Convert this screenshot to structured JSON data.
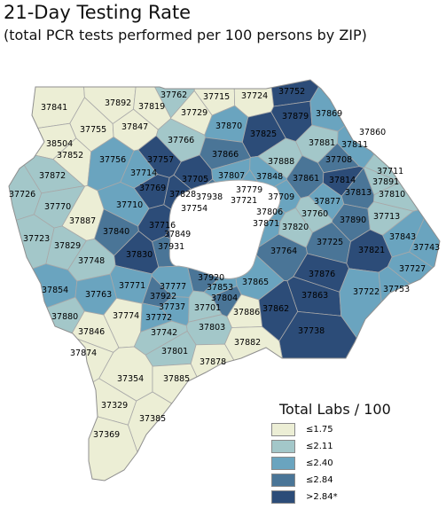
{
  "title": "21-Day Testing Rate",
  "subtitle": "(total PCR tests performed per 100 persons by ZIP)",
  "legend": {
    "title": "Total Labs / 100",
    "items": [
      {
        "label": "≤1.75",
        "color": "#eceed5"
      },
      {
        "label": "≤2.11",
        "color": "#a3c7c9"
      },
      {
        "label": "≤2.40",
        "color": "#6aa4bf"
      },
      {
        "label": "≤2.84",
        "color": "#4a7597"
      },
      {
        "label": ">2.84*",
        "color": "#2c4c78"
      }
    ]
  },
  "map_colors": {
    "border": "#a8a8a8",
    "lake": "#ffffff"
  },
  "zips": [
    {
      "zip": "37762",
      "cls": 1
    },
    {
      "zip": "37715",
      "cls": 0
    },
    {
      "zip": "37724",
      "cls": 0
    },
    {
      "zip": "37752",
      "cls": 4
    },
    {
      "zip": "37841",
      "cls": 0
    },
    {
      "zip": "37892",
      "cls": 0
    },
    {
      "zip": "37819",
      "cls": 0
    },
    {
      "zip": "37729",
      "cls": 0
    },
    {
      "zip": "37879",
      "cls": 4
    },
    {
      "zip": "37869",
      "cls": 2
    },
    {
      "zip": "37755",
      "cls": 0
    },
    {
      "zip": "37847",
      "cls": 0
    },
    {
      "zip": "37870",
      "cls": 2
    },
    {
      "zip": "37825",
      "cls": 4
    },
    {
      "zip": "37766",
      "cls": 1
    },
    {
      "zip": "37881",
      "cls": 1
    },
    {
      "zip": "37811",
      "cls": 2
    },
    {
      "zip": "38504",
      "cls": 0
    },
    {
      "zip": "37852",
      "cls": 0
    },
    {
      "zip": "37756",
      "cls": 2
    },
    {
      "zip": "37757",
      "cls": 4
    },
    {
      "zip": "37866",
      "cls": 3
    },
    {
      "zip": "37888",
      "cls": 1
    },
    {
      "zip": "37708",
      "cls": 3
    },
    {
      "zip": "37860",
      "cls": 1
    },
    {
      "zip": "37872",
      "cls": 1
    },
    {
      "zip": "37714",
      "cls": 2
    },
    {
      "zip": "37705",
      "cls": 4
    },
    {
      "zip": "37807",
      "cls": 2
    },
    {
      "zip": "37848",
      "cls": 2
    },
    {
      "zip": "37861",
      "cls": 3
    },
    {
      "zip": "37814",
      "cls": 4
    },
    {
      "zip": "37711",
      "cls": 1
    },
    {
      "zip": "37891",
      "cls": 1
    },
    {
      "zip": "37769",
      "cls": 4
    },
    {
      "zip": "37828",
      "cls": 4
    },
    {
      "zip": "37938",
      "cls": 3
    },
    {
      "zip": "37779",
      "cls": 2
    },
    {
      "zip": "37721",
      "cls": 2
    },
    {
      "zip": "37726",
      "cls": 1
    },
    {
      "zip": "37770",
      "cls": 1
    },
    {
      "zip": "37710",
      "cls": 2
    },
    {
      "zip": "37754",
      "cls": 3
    },
    {
      "zip": "37709",
      "cls": 2
    },
    {
      "zip": "37877",
      "cls": 2
    },
    {
      "zip": "37813",
      "cls": 3
    },
    {
      "zip": "37810",
      "cls": 1
    },
    {
      "zip": "37806",
      "cls": 2
    },
    {
      "zip": "37760",
      "cls": 1
    },
    {
      "zip": "37890",
      "cls": 3
    },
    {
      "zip": "37887",
      "cls": 0
    },
    {
      "zip": "37871",
      "cls": 2
    },
    {
      "zip": "37820",
      "cls": 1
    },
    {
      "zip": "37713",
      "cls": 1
    },
    {
      "zip": "37840",
      "cls": 3
    },
    {
      "zip": "37716",
      "cls": 4
    },
    {
      "zip": "37723",
      "cls": 1
    },
    {
      "zip": "37849",
      "cls": 4
    },
    {
      "zip": "37725",
      "cls": 3
    },
    {
      "zip": "37843",
      "cls": 2
    },
    {
      "zip": "37829",
      "cls": 1
    },
    {
      "zip": "37931",
      "cls": 3
    },
    {
      "zip": "37821",
      "cls": 4
    },
    {
      "zip": "37743",
      "cls": 2
    },
    {
      "zip": "37748",
      "cls": 1
    },
    {
      "zip": "37830",
      "cls": 4
    },
    {
      "zip": "37764",
      "cls": 3
    },
    {
      "zip": "37876",
      "cls": 4
    },
    {
      "zip": "37727",
      "cls": 2
    },
    {
      "zip": "37920",
      "cls": 3
    },
    {
      "zip": "37865",
      "cls": 2
    },
    {
      "zip": "37853",
      "cls": 2
    },
    {
      "zip": "37854",
      "cls": 2
    },
    {
      "zip": "37771",
      "cls": 2
    },
    {
      "zip": "37777",
      "cls": 2
    },
    {
      "zip": "37922",
      "cls": 3
    },
    {
      "zip": "37804",
      "cls": 3
    },
    {
      "zip": "37863",
      "cls": 4
    },
    {
      "zip": "37722",
      "cls": 2
    },
    {
      "zip": "37753",
      "cls": 2
    },
    {
      "zip": "37763",
      "cls": 2
    },
    {
      "zip": "37737",
      "cls": 2
    },
    {
      "zip": "37701",
      "cls": 1
    },
    {
      "zip": "37886",
      "cls": 0
    },
    {
      "zip": "37862",
      "cls": 4
    },
    {
      "zip": "37880",
      "cls": 1
    },
    {
      "zip": "37774",
      "cls": 0
    },
    {
      "zip": "37772",
      "cls": 2
    },
    {
      "zip": "37742",
      "cls": 1
    },
    {
      "zip": "37803",
      "cls": 1
    },
    {
      "zip": "37738",
      "cls": 4
    },
    {
      "zip": "37846",
      "cls": 0
    },
    {
      "zip": "37882",
      "cls": 0
    },
    {
      "zip": "37874",
      "cls": 0
    },
    {
      "zip": "37801",
      "cls": 1
    },
    {
      "zip": "37878",
      "cls": 0
    },
    {
      "zip": "37354",
      "cls": 0
    },
    {
      "zip": "37885",
      "cls": 0
    },
    {
      "zip": "37329",
      "cls": 0
    },
    {
      "zip": "37385",
      "cls": 0
    },
    {
      "zip": "37369",
      "cls": 0
    }
  ]
}
